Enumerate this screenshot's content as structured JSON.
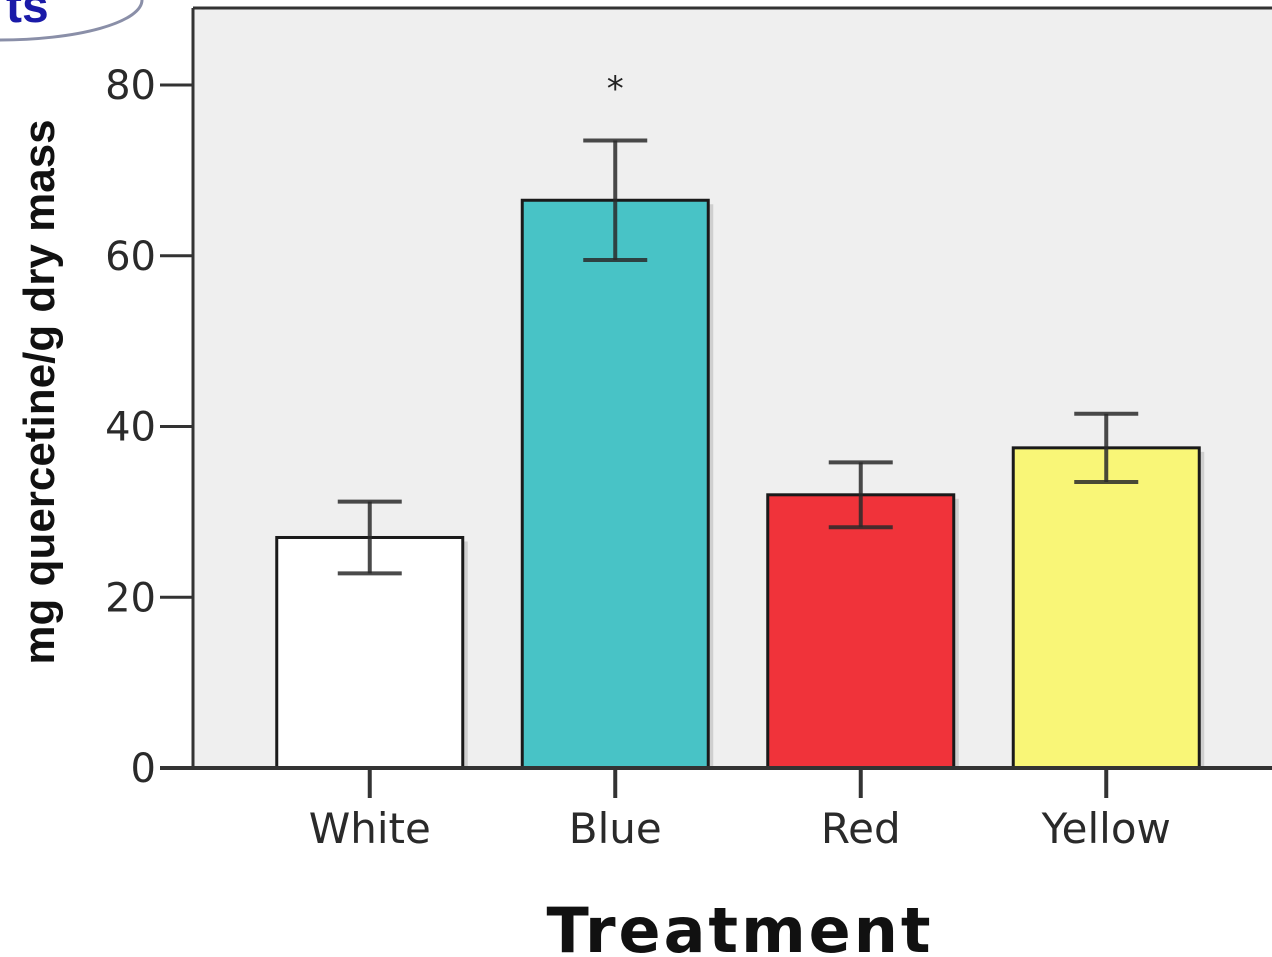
{
  "slide_tag": "ts",
  "chart_data": {
    "type": "bar",
    "categories": [
      "White",
      "Blue",
      "Red",
      "Yellow"
    ],
    "values": [
      27,
      66.5,
      32,
      37.5
    ],
    "error_low": [
      22.8,
      59.5,
      28.2,
      33.5
    ],
    "error_high": [
      31.2,
      73.5,
      35.8,
      41.5
    ],
    "bar_colors": [
      "#ffffff",
      "#48c3c6",
      "#f0333a",
      "#f9f677"
    ],
    "xlabel": "Treatment",
    "ylabel": "mg quercetine/g dry mass",
    "ylim": [
      0,
      80
    ],
    "yticks": [
      0,
      20,
      40,
      60,
      80
    ],
    "plot_background": "#efefef",
    "annotations": [
      {
        "category": "Blue",
        "text": "*"
      }
    ]
  }
}
